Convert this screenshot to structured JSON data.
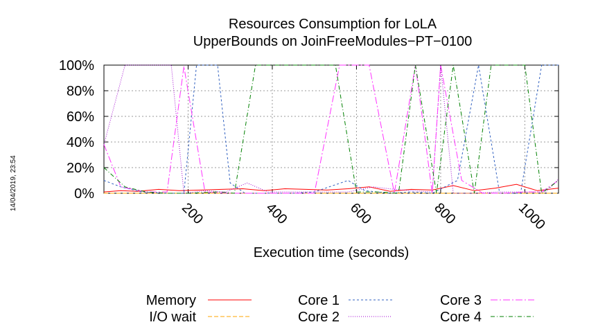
{
  "side_stamp": "14/04/2019, 23:54",
  "chart_data": {
    "type": "line",
    "title": "Resources Consumption for LoLA",
    "subtitle": "UpperBounds on JoinFreeModules−PT−0100",
    "xlabel": "Execution time (seconds)",
    "ylabel": "",
    "xlim": [
      0,
      1080
    ],
    "ylim": [
      0,
      100
    ],
    "xticks": [
      200,
      400,
      600,
      800,
      1000
    ],
    "yticks": [
      0,
      20,
      40,
      60,
      80,
      100
    ],
    "yticklabels": [
      "0%",
      "20%",
      "40%",
      "60%",
      "80%",
      "100%"
    ],
    "grid": true,
    "legend_position": "bottom",
    "series": [
      {
        "name": "Memory",
        "color": "#ff0000",
        "dash": "none",
        "x": [
          0,
          40,
          80,
          130,
          180,
          230,
          280,
          330,
          380,
          430,
          480,
          530,
          580,
          630,
          680,
          730,
          780,
          830,
          880,
          930,
          980,
          1030,
          1080
        ],
        "y": [
          1,
          2,
          1.5,
          3,
          2,
          2.5,
          3,
          3.5,
          2,
          3.5,
          3,
          2.5,
          3.5,
          5,
          1.5,
          3,
          2.5,
          6,
          2,
          4,
          7,
          2,
          4
        ]
      },
      {
        "name": "I/O wait",
        "color": "#ffa500",
        "dash": "6,3",
        "x": [
          0,
          1080
        ],
        "y": [
          0,
          0
        ]
      },
      {
        "name": "Core 1",
        "color": "#3060c0",
        "dash": "3,3",
        "x": [
          0,
          40,
          90,
          140,
          190,
          220,
          270,
          300,
          335,
          380,
          450,
          500,
          580,
          620,
          680,
          730,
          780,
          840,
          890,
          940,
          990,
          1040,
          1080
        ],
        "y": [
          10,
          5,
          1,
          0,
          0,
          100,
          100,
          8,
          0,
          0,
          0,
          1,
          10,
          2,
          0,
          1,
          0,
          10,
          100,
          0,
          0,
          100,
          100
        ]
      },
      {
        "name": "Core 2",
        "color": "#a000d0",
        "dash": "1,2",
        "x": [
          0,
          50,
          100,
          160,
          190,
          240,
          290,
          340,
          390,
          500,
          580,
          640,
          690,
          730,
          780,
          800,
          830,
          880,
          940,
          1000,
          1050,
          1080
        ],
        "y": [
          38,
          100,
          100,
          100,
          0,
          2,
          1,
          8,
          1,
          1,
          1,
          5,
          3,
          2,
          1,
          100,
          0,
          0,
          1,
          1,
          1,
          11
        ]
      },
      {
        "name": "Core 3",
        "color": "#ff30ff",
        "dash": "10,3,2,3",
        "x": [
          0,
          40,
          100,
          150,
          190,
          240,
          300,
          360,
          440,
          500,
          560,
          630,
          690,
          740,
          780,
          800,
          850,
          900,
          950,
          1000,
          1040,
          1080
        ],
        "y": [
          38,
          5,
          1,
          1,
          99,
          1,
          0,
          0,
          0,
          0,
          100,
          100,
          0,
          100,
          0,
          100,
          10,
          0,
          0,
          1,
          1,
          10
        ]
      },
      {
        "name": "Core 4",
        "color": "#008000",
        "dash": "6,3,1,3",
        "x": [
          0,
          50,
          100,
          150,
          200,
          270,
          310,
          360,
          440,
          500,
          550,
          600,
          650,
          700,
          740,
          790,
          830,
          880,
          920,
          960,
          1000,
          1040,
          1080
        ],
        "y": [
          20,
          5,
          1,
          0,
          0,
          1,
          0,
          100,
          100,
          100,
          100,
          1,
          1,
          0,
          100,
          0,
          100,
          0,
          100,
          100,
          100,
          0,
          10
        ]
      }
    ]
  }
}
